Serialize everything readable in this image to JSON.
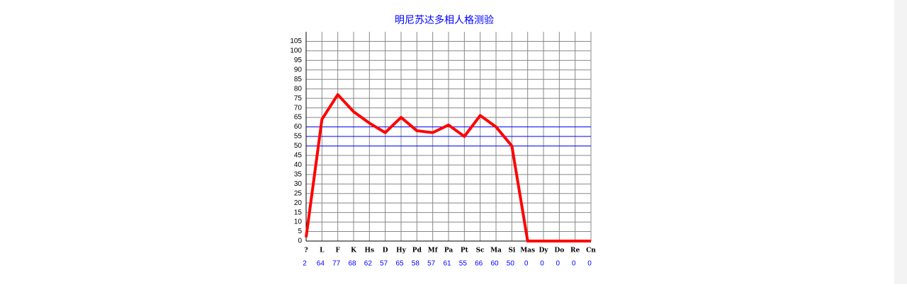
{
  "chart_data": {
    "type": "line",
    "title": "明尼苏达多相人格测验",
    "categories": [
      "?",
      "L",
      "F",
      "K",
      "Hs",
      "D",
      "Hy",
      "Pd",
      "Mf",
      "Pa",
      "Pt",
      "Sc",
      "Ma",
      "Si",
      "Mas",
      "Dy",
      "Do",
      "Re",
      "Cn"
    ],
    "values": [
      2,
      64,
      77,
      68,
      62,
      57,
      65,
      58,
      57,
      61,
      55,
      66,
      60,
      50,
      0,
      0,
      0,
      0,
      0
    ],
    "color": "#ff0000",
    "label_color": "#0000ff",
    "title_color": "#0000ff",
    "ylim": [
      0,
      110
    ],
    "yticks": [
      0,
      5,
      10,
      15,
      20,
      25,
      30,
      35,
      40,
      45,
      50,
      55,
      60,
      65,
      70,
      75,
      80,
      85,
      90,
      95,
      100,
      105
    ],
    "grid": true,
    "grid_color": "#888888",
    "reference_lines": [
      50,
      55,
      60
    ],
    "reference_color": "#0000ff"
  }
}
